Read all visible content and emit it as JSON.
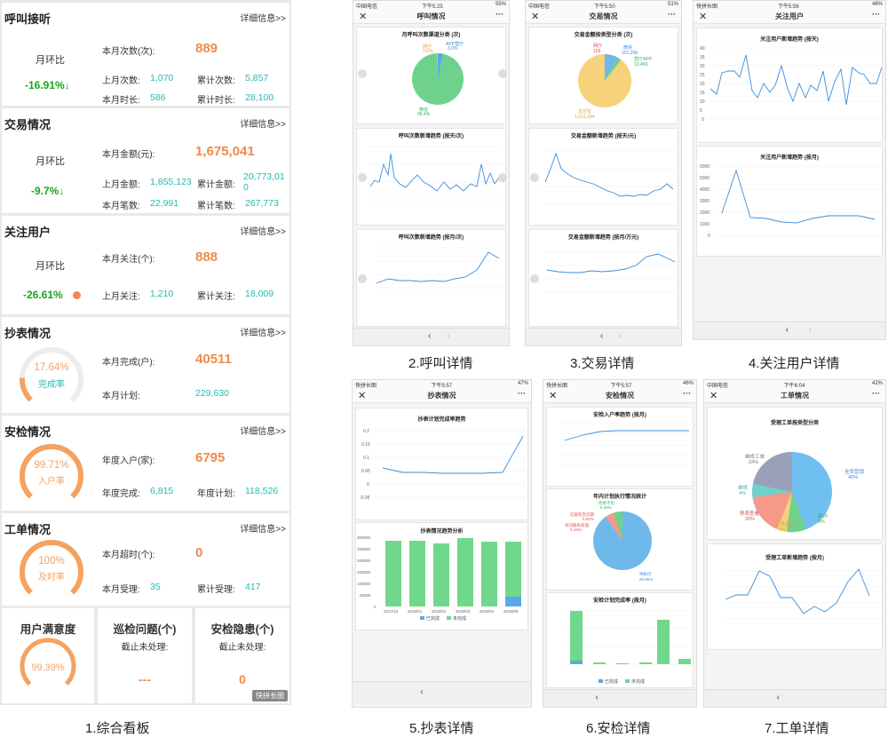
{
  "dashboard": {
    "more": "详细信息>>",
    "mom": "月环比",
    "call": {
      "title": "呼叫接听",
      "mom_value": "-16.91%↓",
      "month_count_label": "本月次数(次):",
      "month_count": "889",
      "last_count_label": "上月次数:",
      "last_count": "1,070",
      "total_count_label": "累计次数:",
      "total_count": "5,857",
      "month_dur_label": "本月时长:",
      "month_dur": "586",
      "total_dur_label": "累计时长:",
      "total_dur": "28,100"
    },
    "trade": {
      "title": "交易情况",
      "mom_value": "-9.7%↓",
      "month_amt_label": "本月金额(元):",
      "month_amt": "1,675,041",
      "last_amt_label": "上月金额:",
      "last_amt": "1,855,123",
      "total_amt_label": "累计金额:",
      "total_amt": "20,773,010",
      "month_cnt_label": "本月笔数:",
      "month_cnt": "22,991",
      "total_cnt_label": "累计笔数:",
      "total_cnt": "267,773"
    },
    "follow": {
      "title": "关注用户",
      "mom_value": "-26.61%",
      "month_label": "本月关注(个):",
      "month_value": "888",
      "last_label": "上月关注:",
      "last_value": "1,210",
      "total_label": "累计关注:",
      "total_value": "18,009"
    },
    "meter": {
      "title": "抄表情况",
      "gauge_pct": "17.64%",
      "gauge_label": "完成率",
      "gauge_fraction": 0.1764,
      "done_label": "本月完成(户):",
      "done_value": "40511",
      "plan_label": "本月计划:",
      "plan_value": "229,630"
    },
    "safety": {
      "title": "安检情况",
      "gauge_pct": "99.71%",
      "gauge_label": "入户率",
      "gauge_fraction": 0.9971,
      "year_label": "年度入户(家):",
      "year_value": "6795",
      "done_label": "年度完成:",
      "done_value": "6,815",
      "plan_label": "年度计划:",
      "plan_value": "118,526"
    },
    "order": {
      "title": "工单情况",
      "gauge_pct": "100%",
      "gauge_label": "及时率",
      "gauge_fraction": 1.0,
      "overdue_label": "本月超时(个):",
      "overdue_value": "0",
      "accepted_label": "本月受理:",
      "accepted_value": "35",
      "total_label": "累计受理:",
      "total_value": "417"
    },
    "satisfaction": {
      "title": "用户满意度",
      "value": "99.39%",
      "fraction": 0.9939
    },
    "patrol": {
      "title": "巡检问题(个)",
      "sub": "截止未处理:",
      "value": "---"
    },
    "hazard": {
      "title": "安检隐患(个)",
      "sub": "截止未处理:",
      "value": "0"
    },
    "watermark": "快拼长图"
  },
  "screens": {
    "call": {
      "title": "呼叫情况",
      "status_left": "中国电信",
      "status_time": "下午5:25",
      "status_right": "55%",
      "pie_title": "月呼叫次数渠道分类 (次)",
      "pie_labels": [
        "网厅",
        "APP营厅",
        "微信"
      ],
      "pie_values": [
        "0.6%",
        "3.0%",
        "96.4%"
      ],
      "day_title": "呼叫次数新增趋势 (按天/次)",
      "month_title": "呼叫次数新增趋势 (按月/次)"
    },
    "trade": {
      "title": "交易情况",
      "status_left": "中国电信",
      "status_time": "下午5:50",
      "status_right": "51%",
      "pie_title": "交易金额按类型分类 (次)",
      "pie_labels": [
        "网厅",
        "微信",
        "营厅APP",
        "支付宝"
      ],
      "pie_values": [
        "169",
        "151,258",
        "10,469",
        "1,513,144"
      ],
      "day_title": "交易金额新增趋势 (按天/元)",
      "month_title": "交易金额新增趋势 (按月/万元)"
    },
    "follow": {
      "title": "关注用户",
      "status_left": "快拼长图",
      "status_time": "下午5:56",
      "status_right": "48%",
      "day_title": "关注用户新增趋势 (按天)",
      "month_title": "关注用户新增趋势 (按月)",
      "day_y": [
        "40",
        "35",
        "30",
        "25",
        "20",
        "15",
        "10",
        "5",
        "0"
      ],
      "month_y": [
        "6000",
        "5000",
        "4000",
        "3000",
        "2000",
        "1000",
        "0"
      ]
    },
    "meter": {
      "title": "抄表情况",
      "status_left": "快拼长图",
      "status_time": "下午5:57",
      "status_right": "47%",
      "line_title": "抄表计划完成率趋势",
      "bar_title": "抄表情况趋势分析",
      "legend": [
        "已完成",
        "未完成"
      ],
      "line_y": [
        "0.2",
        "0.15",
        "0.1",
        "0.05",
        "0",
        "-0.05"
      ],
      "bar_y": [
        "300000",
        "250000",
        "200000",
        "150000",
        "100000",
        "50000",
        "0"
      ],
      "bar_x": [
        "2017/12",
        "2018/01",
        "2018/02",
        "2018/03",
        "2018/04",
        "2018/05"
      ]
    },
    "safety": {
      "title": "安检情况",
      "status_left": "快拼长图",
      "status_time": "下午5:57",
      "status_right": "46%",
      "line_title": "安检入户率趋势 (按月)",
      "pie_title": "年内计划执行情况统计",
      "bar_title": "安检计划完成率 (按月)",
      "pie_labels": [
        "已安检无问题",
        "有问题未处理",
        "拒绝不检",
        "待执行"
      ],
      "pie_values": [
        "5.00%",
        "0.43%",
        "5.36%",
        "88.85%"
      ],
      "legend": [
        "已完成",
        "未完成"
      ]
    },
    "order": {
      "title": "工单情况",
      "status_left": "中国电信",
      "status_time": "下午6:04",
      "status_right": "42%",
      "pie_title": "受理工单按类型分类",
      "line_title": "受理工单新增趋势 (按月)",
      "pie_labels": [
        "维修工单",
        "全员营销",
        "维修",
        "移表查看",
        "往员安装",
        "随州"
      ],
      "pie_values": [
        "24%",
        "40%",
        "4%",
        "20%",
        "4%",
        "8%"
      ]
    }
  },
  "captions": [
    "1.综合看板",
    "2.呼叫详情",
    "3.交易详情",
    "4.关注用户详情",
    "5.抄表详情",
    "6.安检详情",
    "7.工单详情"
  ]
}
